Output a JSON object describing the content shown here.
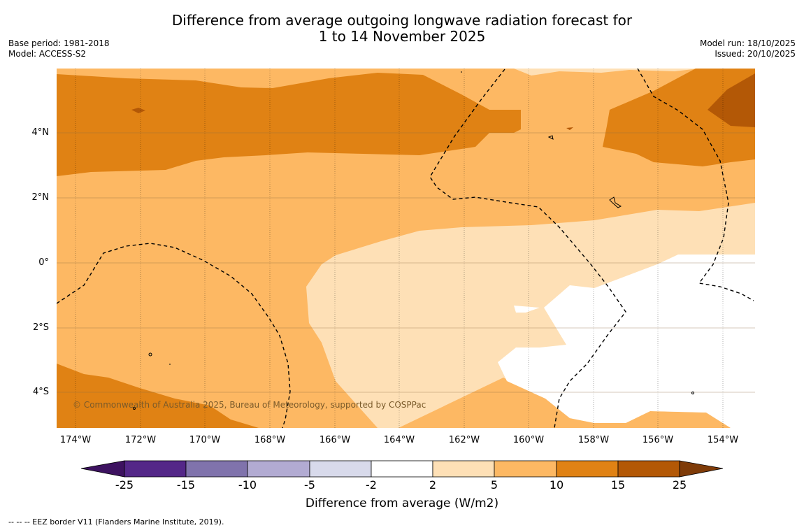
{
  "title_line1": "Difference from average outgoing longwave radiation forecast for",
  "title_line2": "1 to 14 November 2025",
  "meta_left": {
    "base_period": "Base period: 1981-2018",
    "model": "Model: ACCESS-S2"
  },
  "meta_right": {
    "model_run": "Model run: 18/10/2025",
    "issued": "Issued: 20/10/2025"
  },
  "lat_labels": [
    "4°N",
    "2°N",
    "0°",
    "2°S",
    "4°S"
  ],
  "lon_labels": [
    "174°W",
    "172°W",
    "170°W",
    "168°W",
    "166°W",
    "164°W",
    "162°W",
    "160°W",
    "158°W",
    "156°W",
    "154°W"
  ],
  "copyright": "© Commonwealth of Australia 2025, Bureau of Meteorology, supported by COSPPac",
  "colorbar": {
    "ticks": [
      "-25",
      "-15",
      "-10",
      "-5",
      "-2",
      "2",
      "5",
      "10",
      "15",
      "25"
    ],
    "colors": [
      "#3d1260",
      "#542788",
      "#8073ac",
      "#b2abd2",
      "#d8daeb",
      "#ffffff",
      "#fee0b6",
      "#fdb863",
      "#e08214",
      "#b35806",
      "#7f3b08"
    ],
    "label": "Difference from average (W/m2)"
  },
  "legend_footer": "-- -- -- EEZ border V11 (Flanders Marine Institute, 2019)."
}
